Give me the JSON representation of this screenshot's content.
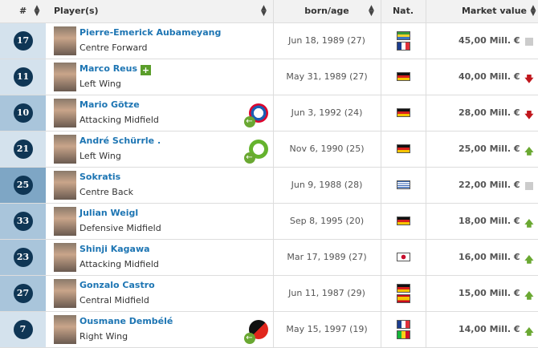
{
  "headers": {
    "num": "#",
    "player": "Player(s)",
    "born": "born/age",
    "nat": "Nat.",
    "value": "Market value"
  },
  "position_colors": {
    "forward": "#d4e2ed",
    "midfield": "#a9c5db",
    "defence": "#7ea6c5"
  },
  "players": [
    {
      "number": "17",
      "name": "Pierre-Emerick Aubameyang",
      "position": "Centre Forward",
      "born": "Jun 18, 1989 (27)",
      "flags": [
        "gabon",
        "france"
      ],
      "value": "45,00 Mill. €",
      "trend": "unchanged",
      "group": "forward",
      "club_icon": null,
      "new": false
    },
    {
      "number": "11",
      "name": "Marco Reus",
      "position": "Left Wing",
      "born": "May 31, 1989 (27)",
      "flags": [
        "germany"
      ],
      "value": "40,00 Mill. €",
      "trend": "down",
      "group": "forward",
      "club_icon": null,
      "new": true
    },
    {
      "number": "10",
      "name": "Mario Götze",
      "position": "Attacking Midfield",
      "born": "Jun 3, 1992 (24)",
      "flags": [
        "germany"
      ],
      "value": "28,00 Mill. €",
      "trend": "down",
      "group": "midfield",
      "club_icon": "bayern-munich",
      "new": false
    },
    {
      "number": "21",
      "name": "André Schürrle .",
      "position": "Left Wing",
      "born": "Nov 6, 1990 (25)",
      "flags": [
        "germany"
      ],
      "value": "25,00 Mill. €",
      "trend": "up",
      "group": "forward",
      "club_icon": "vfl-wolfsburg",
      "new": false
    },
    {
      "number": "25",
      "name": "Sokratis",
      "position": "Centre Back",
      "born": "Jun 9, 1988 (28)",
      "flags": [
        "greece"
      ],
      "value": "22,00 Mill. €",
      "trend": "unchanged",
      "group": "defence",
      "club_icon": null,
      "new": false
    },
    {
      "number": "33",
      "name": "Julian Weigl",
      "position": "Defensive Midfield",
      "born": "Sep 8, 1995 (20)",
      "flags": [
        "germany"
      ],
      "value": "18,00 Mill. €",
      "trend": "up",
      "group": "midfield",
      "club_icon": null,
      "new": false
    },
    {
      "number": "23",
      "name": "Shinji Kagawa",
      "position": "Attacking Midfield",
      "born": "Mar 17, 1989 (27)",
      "flags": [
        "japan"
      ],
      "value": "16,00 Mill. €",
      "trend": "up",
      "group": "midfield",
      "club_icon": null,
      "new": false
    },
    {
      "number": "27",
      "name": "Gonzalo Castro",
      "position": "Central Midfield",
      "born": "Jun 11, 1987 (29)",
      "flags": [
        "germany",
        "spain"
      ],
      "value": "15,00 Mill. €",
      "trend": "up",
      "group": "midfield",
      "club_icon": null,
      "new": false
    },
    {
      "number": "7",
      "name": "Ousmane Dembélé",
      "position": "Right Wing",
      "born": "May 15, 1997 (19)",
      "flags": [
        "france",
        "mali"
      ],
      "value": "14,00 Mill. €",
      "trend": "up",
      "group": "forward",
      "club_icon": "stade-rennais",
      "new": false
    }
  ]
}
